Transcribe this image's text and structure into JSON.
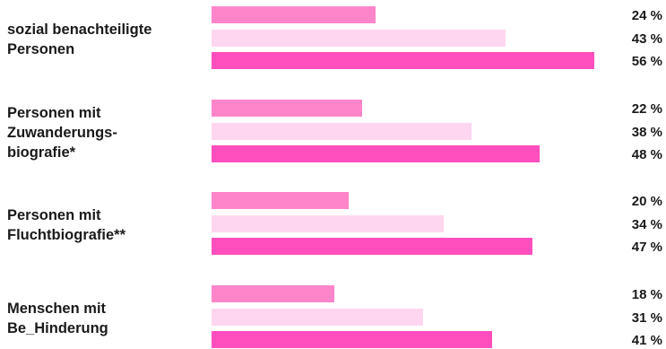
{
  "chart_data": {
    "type": "bar",
    "orientation": "horizontal",
    "categories": [
      "sozial benachteiligte\nPersonen",
      "Personen mit\nZuwanderungs-\nbiografie*",
      "Personen mit\nFluchtbiografie**",
      "Menschen mit\nBe_Hinderung"
    ],
    "series": [
      {
        "values": [
          24,
          22,
          20,
          18
        ],
        "labels": [
          "24 %",
          "22 %",
          "20 %",
          "18 %"
        ],
        "color": "#ff85cb"
      },
      {
        "values": [
          43,
          38,
          34,
          31
        ],
        "labels": [
          "43 %",
          "38 %",
          "34 %",
          "31 %"
        ],
        "color": "#ffd6ef"
      },
      {
        "values": [
          56,
          48,
          47,
          41
        ],
        "labels": [
          "56 %",
          "48 %",
          "47 %",
          "41 %"
        ],
        "color": "#ff4fbf"
      }
    ],
    "xlim": [
      0,
      56
    ],
    "title": "",
    "xlabel": "",
    "ylabel": "",
    "legend": "none",
    "grid": false
  }
}
